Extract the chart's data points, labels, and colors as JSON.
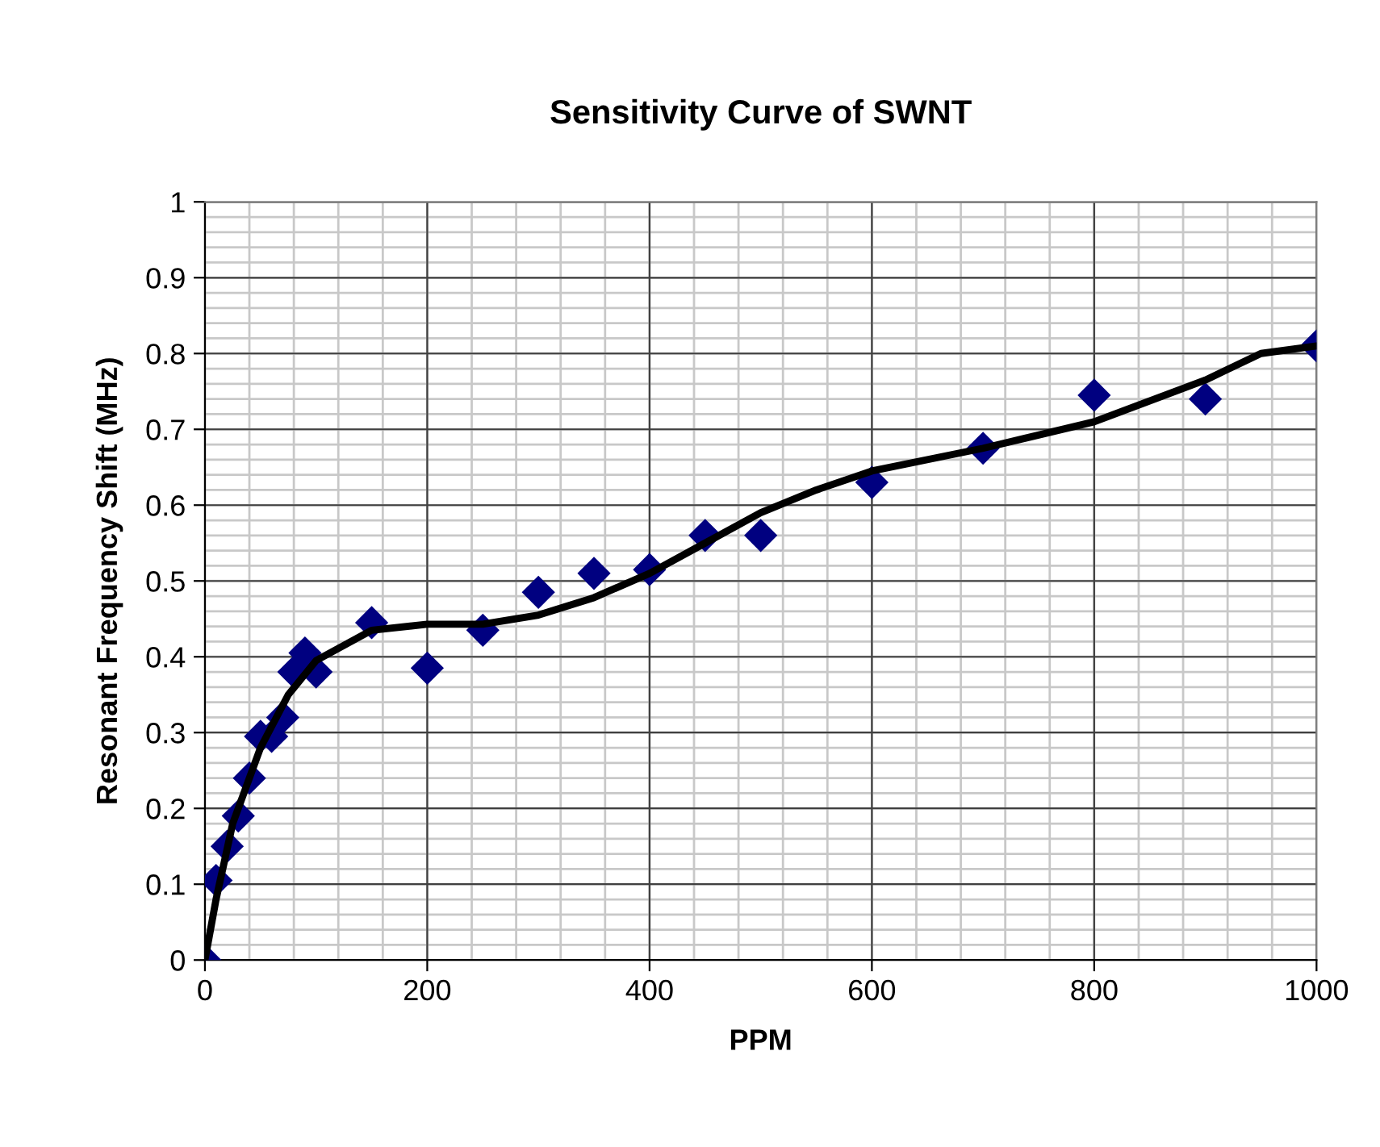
{
  "chart_data": {
    "type": "scatter",
    "title": "Sensitivity Curve of SWNT",
    "xlabel": "PPM",
    "ylabel": "Resonant Frequency Shift (MHz)",
    "xlim": [
      0,
      1000
    ],
    "xticks": [
      0,
      200,
      400,
      600,
      800,
      1000
    ],
    "ylim": [
      0,
      1
    ],
    "yticks": [
      0,
      0.1,
      0.2,
      0.3,
      0.4,
      0.5,
      0.6,
      0.7,
      0.8,
      0.9,
      1
    ],
    "grid": true,
    "legend": false,
    "series": [
      {
        "color": "#000080",
        "marker": "diamond",
        "x": [
          0,
          10,
          20,
          30,
          40,
          50,
          60,
          70,
          80,
          90,
          100,
          150,
          200,
          250,
          300,
          350,
          400,
          450,
          500,
          600,
          700,
          800,
          900,
          1000
        ],
        "values": [
          0,
          0.105,
          0.15,
          0.19,
          0.24,
          0.295,
          0.295,
          0.32,
          0.38,
          0.405,
          0.38,
          0.445,
          0.385,
          0.435,
          0.485,
          0.51,
          0.515,
          0.56,
          0.56,
          0.63,
          0.675,
          0.745,
          0.74,
          0.81
        ]
      },
      {
        "type": "line",
        "color": "#000000",
        "marker": "none",
        "line_style": "solid",
        "x": [
          0,
          10,
          25,
          50,
          75,
          100,
          150,
          200,
          250,
          300,
          350,
          400,
          450,
          500,
          550,
          600,
          700,
          800,
          900,
          950,
          1000
        ],
        "values": [
          0,
          0.08,
          0.18,
          0.28,
          0.35,
          0.395,
          0.435,
          0.443,
          0.443,
          0.455,
          0.478,
          0.51,
          0.55,
          0.59,
          0.62,
          0.645,
          0.675,
          0.71,
          0.765,
          0.8,
          0.81
        ]
      }
    ]
  }
}
